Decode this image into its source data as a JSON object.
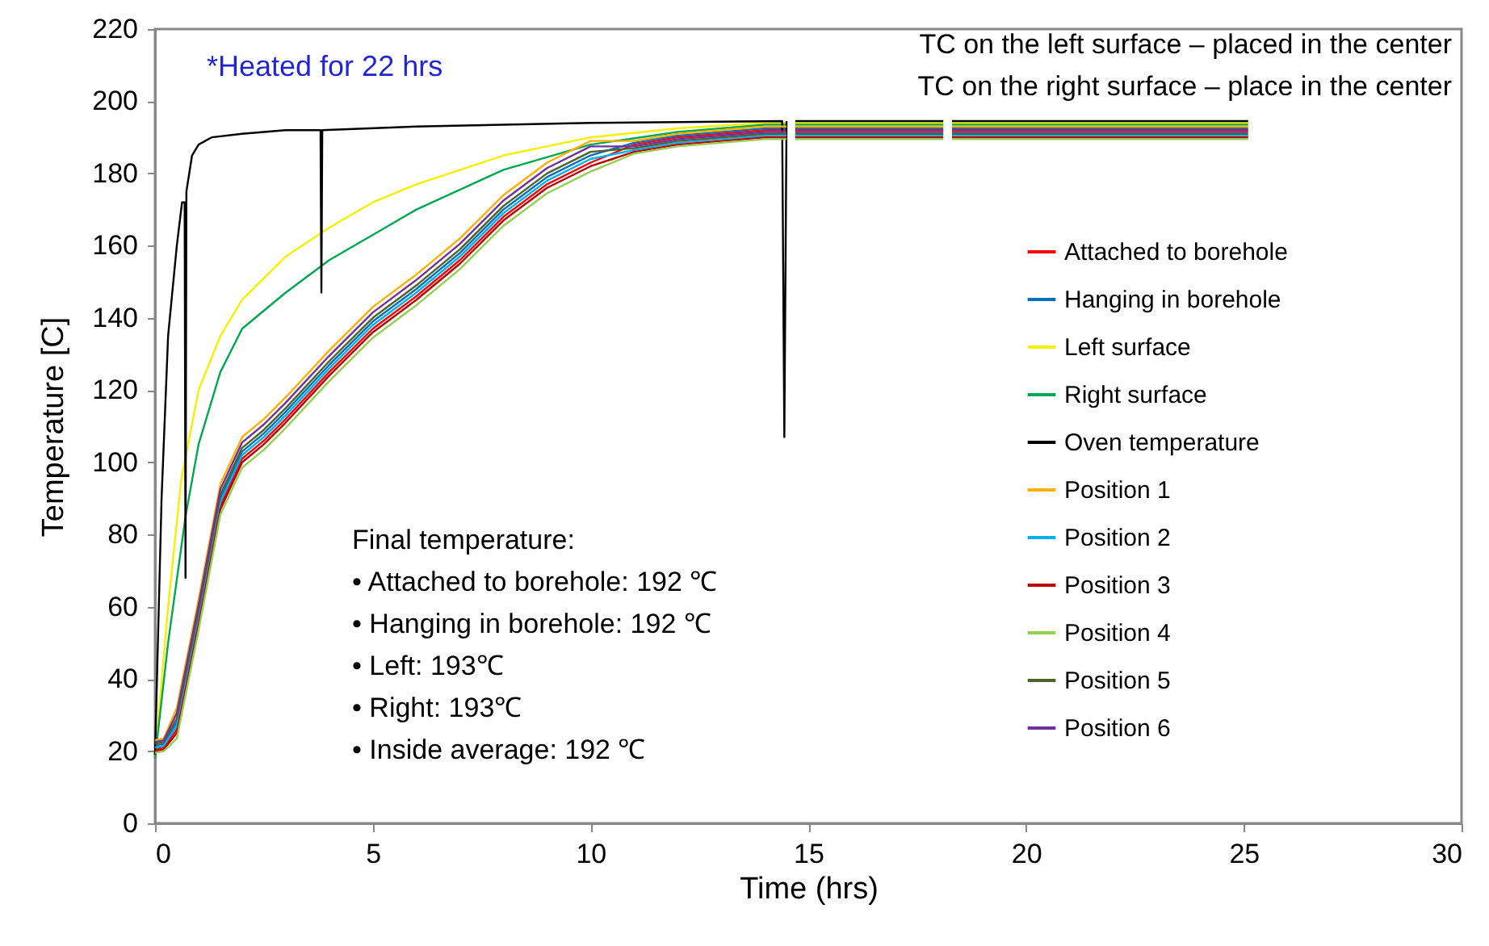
{
  "chart_data": {
    "type": "line",
    "xlabel": "Time (hrs)",
    "ylabel": "Temperature [C]",
    "xlim": [
      0,
      30
    ],
    "xticks": [
      0,
      5,
      10,
      15,
      20,
      25,
      30
    ],
    "ylim": [
      0,
      220
    ],
    "yticks": [
      0,
      20,
      40,
      60,
      80,
      100,
      120,
      140,
      160,
      180,
      200,
      220
    ],
    "grid": false,
    "legend": "right",
    "line_style": "solid",
    "annotations": [
      "*Heated for 22 hrs",
      "TC on the left surface – placed in the center",
      "TC on the right surface – place in the center",
      "Final temperature:",
      "•   Attached to borehole: 192 ℃",
      "•   Hanging in borehole:  192 ℃",
      "•   Left: 193℃",
      "•   Right: 193℃",
      "•   Inside average: 192 ℃"
    ],
    "x": [
      0,
      0.2,
      0.5,
      1,
      1.5,
      2,
      2.5,
      3,
      4,
      5,
      6,
      7,
      8,
      9,
      10,
      11,
      12,
      13,
      14,
      14.5,
      14.6,
      14.7,
      16,
      18.1,
      18.2,
      18.3,
      20,
      22,
      25.1
    ],
    "series": [
      {
        "name": "Attached to borehole",
        "color": "#ff0000",
        "values": [
          20.5,
          21,
          26,
          56,
          88,
          101,
          106,
          112,
          125,
          137,
          146,
          156,
          168,
          177,
          183,
          188,
          190,
          191,
          192,
          192,
          null,
          192,
          192,
          192,
          null,
          192,
          192,
          192,
          192
        ]
      },
      {
        "name": "Hanging in borehole",
        "color": "#0070c0",
        "values": [
          21.5,
          22,
          28,
          58,
          90,
          103,
          108,
          114,
          127,
          139,
          148,
          158,
          170,
          179,
          185,
          188.5,
          190.5,
          191.5,
          192.5,
          192.5,
          null,
          192.5,
          192.5,
          192.5,
          null,
          192.5,
          192.5,
          192.5,
          192.5
        ]
      },
      {
        "name": "Left surface",
        "color": "#f5f000",
        "x": [
          0,
          0.3,
          0.6,
          1,
          1.5,
          2,
          3,
          4,
          5,
          6,
          8,
          10,
          12,
          14,
          14.5,
          14.6,
          14.7,
          16,
          18.1,
          18.2,
          18.3,
          20,
          22,
          25.1
        ],
        "values": [
          18.5,
          60,
          95,
          120,
          135,
          145,
          157,
          165,
          172,
          177,
          185,
          190,
          192.5,
          194,
          194,
          null,
          194,
          194,
          194,
          null,
          194,
          194,
          194,
          194
        ]
      },
      {
        "name": "Right surface",
        "color": "#00a850",
        "x": [
          0,
          0.3,
          0.7,
          1,
          1.5,
          2,
          3,
          4,
          5,
          6,
          8,
          10,
          12,
          14,
          14.5,
          14.6,
          14.7,
          16,
          18.1,
          18.2,
          18.3,
          20,
          22,
          25.1
        ],
        "values": [
          18,
          50,
          85,
          105,
          125,
          137,
          147,
          156,
          163,
          170,
          181,
          188,
          191.5,
          193.5,
          193.5,
          null,
          193.5,
          193.5,
          193.5,
          null,
          193.5,
          193.5,
          193.5,
          193.5
        ]
      },
      {
        "name": "Oven temperature",
        "color": "#000000",
        "x": [
          0,
          0.15,
          0.3,
          0.5,
          0.62,
          0.68,
          0.7,
          0.72,
          0.85,
          1,
          1.3,
          2,
          3,
          3.8,
          3.82,
          3.84,
          6,
          10,
          14.4,
          14.45,
          14.5,
          14.6,
          14.7,
          16,
          18.1,
          18.2,
          18.3,
          20,
          22,
          25.1
        ],
        "values": [
          19,
          90,
          135,
          160,
          172,
          172,
          68,
          175,
          185,
          188,
          190,
          191,
          192,
          192,
          147,
          192,
          193,
          194,
          194.5,
          107,
          194.5,
          null,
          194.5,
          194.5,
          194.5,
          null,
          194.5,
          194.5,
          194.5,
          194.5
        ]
      },
      {
        "name": "Position 1",
        "color": "#ffb000",
        "values": [
          23,
          23.5,
          32,
          62,
          94,
          107,
          112,
          118,
          131,
          143,
          152,
          162,
          174,
          183,
          189,
          189,
          191,
          192,
          193,
          193,
          null,
          193,
          193,
          193,
          null,
          193,
          193,
          193,
          193
        ]
      },
      {
        "name": "Position 2",
        "color": "#00b0f0",
        "values": [
          21,
          21.5,
          27,
          57,
          89,
          102,
          107,
          113,
          126,
          138,
          147,
          157,
          169,
          178,
          184,
          186.5,
          188.5,
          189.5,
          190.5,
          190.5,
          null,
          190.5,
          190.5,
          190.5,
          null,
          190.5,
          190.5,
          190.5,
          190.5
        ]
      },
      {
        "name": "Position 3",
        "color": "#c00000",
        "values": [
          20,
          20.5,
          25,
          55,
          87,
          100,
          105,
          111,
          124,
          136,
          145,
          155,
          167,
          176,
          182,
          186,
          188,
          189,
          190,
          190,
          null,
          190,
          190,
          190,
          null,
          190,
          190,
          190,
          190
        ]
      },
      {
        "name": "Position 4",
        "color": "#92d050",
        "values": [
          19.5,
          20,
          23.5,
          53.5,
          85.5,
          98.5,
          103.5,
          109.5,
          122.5,
          134.5,
          143.5,
          153.5,
          165.5,
          174.5,
          180.5,
          185.5,
          187.5,
          188.5,
          189.5,
          189.5,
          null,
          189.5,
          189.5,
          189.5,
          null,
          189.5,
          189.5,
          189.5,
          189.5
        ]
      },
      {
        "name": "Position 5",
        "color": "#4f6228",
        "values": [
          22,
          22.5,
          29,
          59,
          91,
          104,
          109,
          115,
          128,
          140,
          149,
          159,
          171,
          180,
          186,
          187,
          189,
          190,
          191,
          191,
          null,
          191,
          191,
          191,
          null,
          191,
          191,
          191,
          191
        ]
      },
      {
        "name": "Position 6",
        "color": "#7030a0",
        "values": [
          22.5,
          23,
          30.5,
          60.5,
          92.5,
          105.5,
          110.5,
          116.5,
          129.5,
          141.5,
          150.5,
          160.5,
          172.5,
          181.5,
          187.5,
          187.5,
          189.5,
          190.5,
          191.5,
          191.5,
          null,
          191.5,
          191.5,
          191.5,
          null,
          191.5,
          191.5,
          191.5,
          191.5
        ]
      }
    ]
  }
}
